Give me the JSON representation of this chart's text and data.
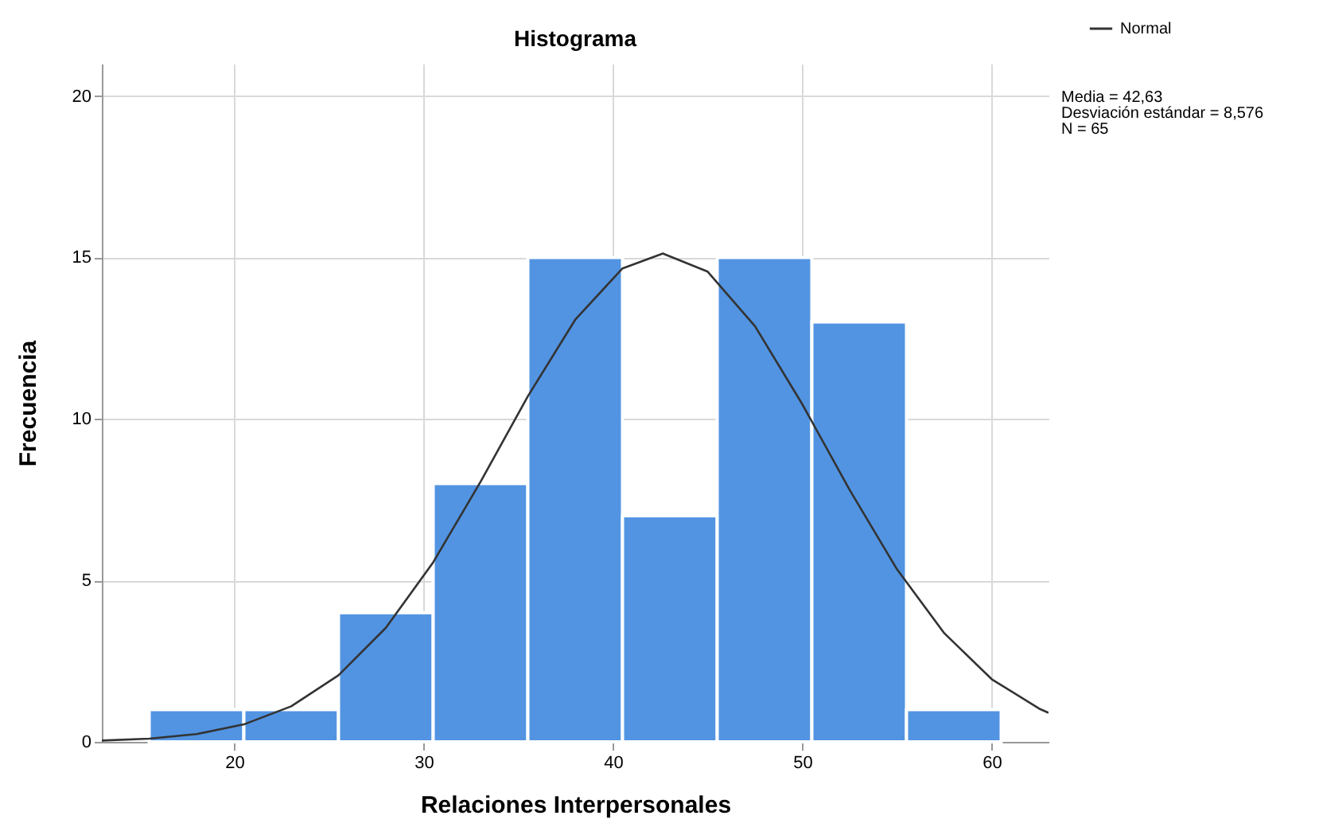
{
  "chart_data": {
    "type": "histogram",
    "title": "Histograma",
    "xlabel": "Relaciones Interpersonales",
    "ylabel": "Frecuencia",
    "bins": [
      15.5,
      20.5,
      25.5,
      30.5,
      35.5,
      40.5,
      45.5,
      50.5,
      55.5,
      60.5
    ],
    "values": [
      1,
      1,
      4,
      8,
      15,
      7,
      15,
      13,
      1
    ],
    "color": "#5294e2",
    "series": [
      {
        "type": "line",
        "name": "Normal",
        "color": "#333333",
        "x": [
          13,
          15.5,
          18,
          20.5,
          23,
          25.5,
          28,
          30.5,
          33,
          35.5,
          38,
          40.5,
          42.63,
          45,
          47.5,
          50,
          52.5,
          55,
          57.5,
          60,
          62.5,
          63
        ],
        "values": [
          0.04,
          0.1,
          0.24,
          0.54,
          1.1,
          2.06,
          3.53,
          5.56,
          8.05,
          10.7,
          13.07,
          14.66,
          15.12,
          14.56,
          12.87,
          10.45,
          7.8,
          5.34,
          3.36,
          1.94,
          1.03,
          0.9
        ]
      }
    ],
    "xlim": [
      13,
      63
    ],
    "xticks": [
      20,
      30,
      40,
      50,
      60
    ],
    "ylim": [
      0,
      21
    ],
    "yticks": [
      0,
      5,
      10,
      15,
      20
    ],
    "grid": true,
    "legend": "top right",
    "annotations": [
      "Media = 42,63",
      "Desviación estándar = 8,576",
      "N = 65"
    ]
  }
}
